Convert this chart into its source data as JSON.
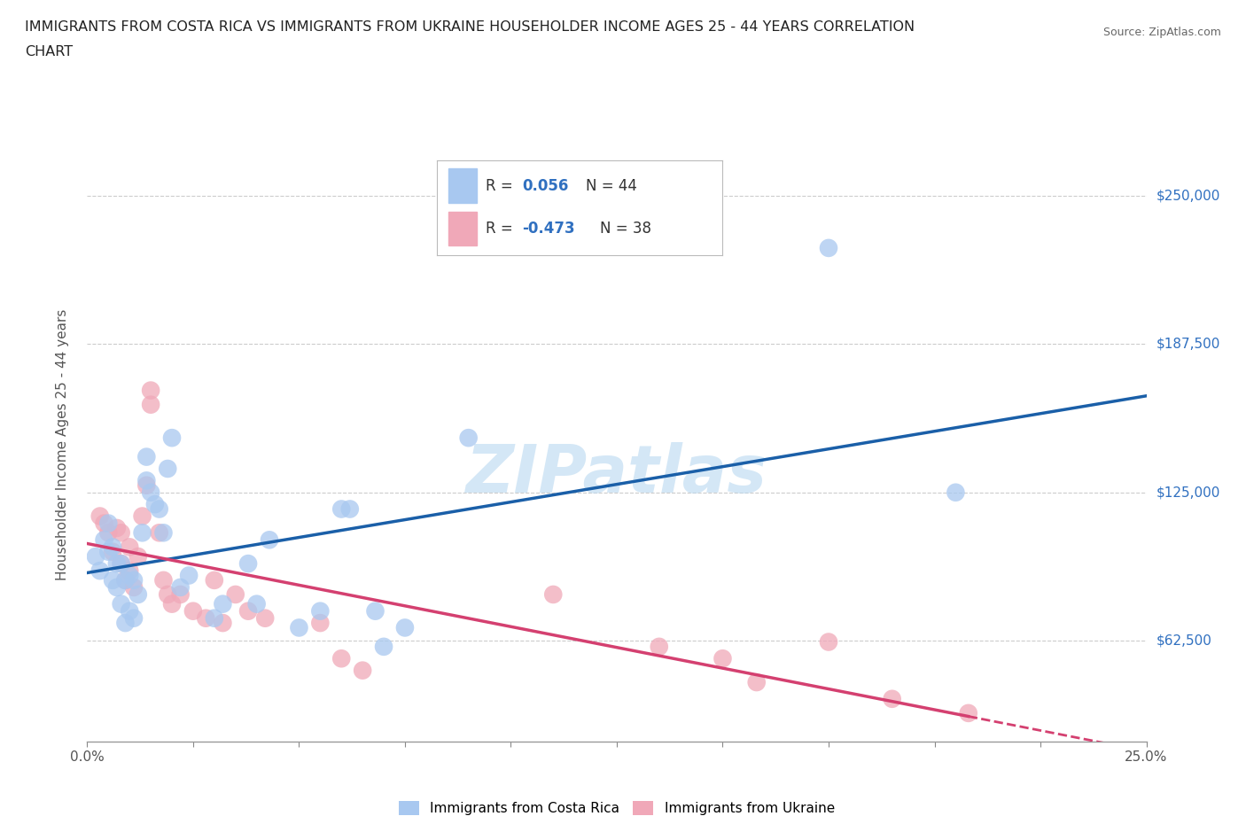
{
  "title_line1": "IMMIGRANTS FROM COSTA RICA VS IMMIGRANTS FROM UKRAINE HOUSEHOLDER INCOME AGES 25 - 44 YEARS CORRELATION",
  "title_line2": "CHART",
  "source": "Source: ZipAtlas.com",
  "ylabel": "Householder Income Ages 25 - 44 years",
  "xlim": [
    0.0,
    0.25
  ],
  "ylim": [
    20000,
    270000
  ],
  "yticks": [
    62500,
    125000,
    187500,
    250000
  ],
  "ytick_labels": [
    "$62,500",
    "$125,000",
    "$187,500",
    "$250,000"
  ],
  "xticks": [
    0.0,
    0.025,
    0.05,
    0.075,
    0.1,
    0.125,
    0.15,
    0.175,
    0.2,
    0.225,
    0.25
  ],
  "xtick_labels": [
    "0.0%",
    "",
    "",
    "",
    "",
    "",
    "",
    "",
    "",
    "",
    "25.0%"
  ],
  "R_costa_rica": "0.056",
  "N_costa_rica": "44",
  "R_ukraine": "-0.473",
  "N_ukraine": "38",
  "color_costa_rica": "#a8c8f0",
  "color_ukraine": "#f0a8b8",
  "line_color_costa_rica": "#1a5fa8",
  "line_color_ukraine": "#d44070",
  "watermark": "ZIPatlas",
  "background_color": "#ffffff",
  "grid_color": "#cccccc",
  "costa_rica_x": [
    0.002,
    0.003,
    0.004,
    0.005,
    0.005,
    0.006,
    0.006,
    0.007,
    0.007,
    0.008,
    0.008,
    0.009,
    0.009,
    0.01,
    0.01,
    0.011,
    0.011,
    0.012,
    0.013,
    0.014,
    0.014,
    0.015,
    0.016,
    0.017,
    0.018,
    0.019,
    0.02,
    0.022,
    0.024,
    0.03,
    0.032,
    0.038,
    0.04,
    0.043,
    0.05,
    0.055,
    0.06,
    0.062,
    0.068,
    0.07,
    0.075,
    0.09,
    0.175,
    0.205
  ],
  "costa_rica_y": [
    98000,
    92000,
    105000,
    100000,
    112000,
    88000,
    102000,
    85000,
    95000,
    78000,
    95000,
    70000,
    88000,
    75000,
    90000,
    72000,
    88000,
    82000,
    108000,
    130000,
    140000,
    125000,
    120000,
    118000,
    108000,
    135000,
    148000,
    85000,
    90000,
    72000,
    78000,
    95000,
    78000,
    105000,
    68000,
    75000,
    118000,
    118000,
    75000,
    60000,
    68000,
    148000,
    228000,
    125000
  ],
  "ukraine_x": [
    0.003,
    0.004,
    0.005,
    0.006,
    0.007,
    0.008,
    0.008,
    0.009,
    0.01,
    0.01,
    0.011,
    0.012,
    0.013,
    0.014,
    0.015,
    0.015,
    0.017,
    0.018,
    0.019,
    0.02,
    0.022,
    0.025,
    0.028,
    0.03,
    0.032,
    0.035,
    0.038,
    0.042,
    0.055,
    0.06,
    0.065,
    0.11,
    0.135,
    0.15,
    0.158,
    0.175,
    0.19,
    0.208
  ],
  "ukraine_y": [
    115000,
    112000,
    108000,
    100000,
    110000,
    95000,
    108000,
    88000,
    92000,
    102000,
    85000,
    98000,
    115000,
    128000,
    168000,
    162000,
    108000,
    88000,
    82000,
    78000,
    82000,
    75000,
    72000,
    88000,
    70000,
    82000,
    75000,
    72000,
    70000,
    55000,
    50000,
    82000,
    60000,
    55000,
    45000,
    62000,
    38000,
    32000
  ]
}
